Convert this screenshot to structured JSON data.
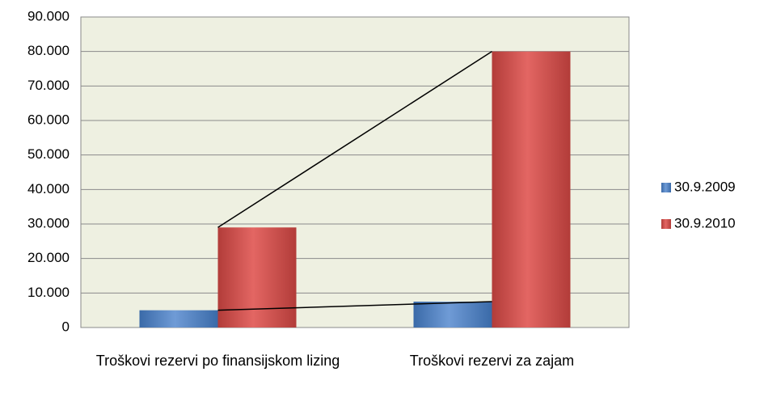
{
  "chart_data": {
    "type": "bar",
    "categories": [
      "Troškovi rezervi po finansijskom lizing",
      "Troškovi rezervi za zajam"
    ],
    "series": [
      {
        "name": "30.9.2009",
        "color": "#4f81bd",
        "values": [
          5000,
          7500
        ]
      },
      {
        "name": "30.9.2010",
        "color": "#c0504d",
        "values": [
          29000,
          80000
        ]
      }
    ],
    "ylim": [
      0,
      90000
    ],
    "yticks": [
      0,
      {
        "value": 10000,
        "label": "10.000"
      },
      {
        "value": 20000,
        "label": "20.000"
      },
      {
        "value": 30000,
        "label": "30.000"
      },
      {
        "value": 40000,
        "label": "40.000"
      },
      {
        "value": 50000,
        "label": "50.000"
      },
      {
        "value": 60000,
        "label": "60.000"
      },
      {
        "value": 70000,
        "label": "70.000"
      },
      {
        "value": 80000,
        "label": "80.000"
      },
      {
        "value": 90000,
        "label": "90.000"
      }
    ],
    "grid": true,
    "series_lines": true,
    "legend": "right",
    "plot_background": "#eef0e1"
  }
}
